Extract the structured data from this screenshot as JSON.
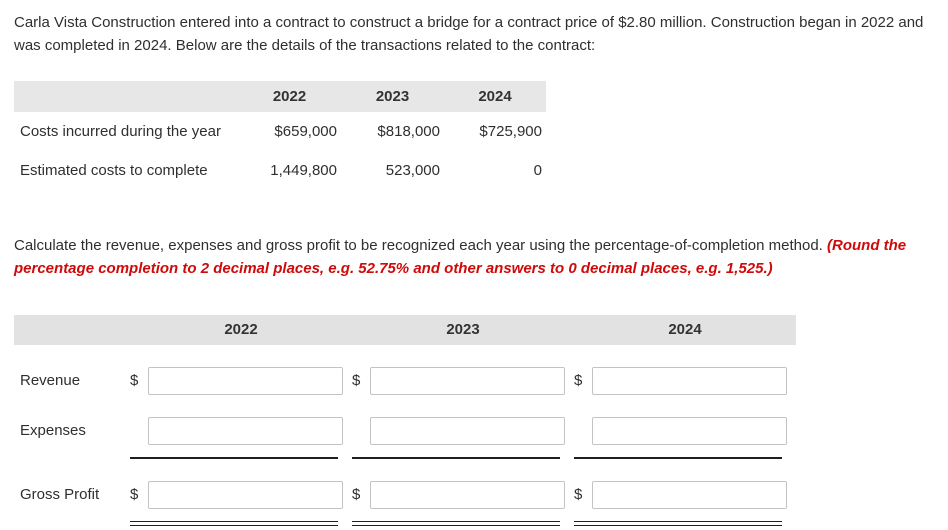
{
  "intro": {
    "text": "Carla Vista Construction entered into a contract to construct a bridge for a contract price of $2.80 million. Construction began in 2022 and was completed in 2024. Below are the details of the transactions related to the contract:"
  },
  "cost_table": {
    "years": [
      "2022",
      "2023",
      "2024"
    ],
    "rows": [
      {
        "label": "Costs incurred during the year",
        "values": [
          "$659,000",
          "$818,000",
          "$725,900"
        ]
      },
      {
        "label": "Estimated costs to complete",
        "values": [
          "1,449,800",
          "523,000",
          "0"
        ]
      }
    ]
  },
  "instruction": {
    "normal": "Calculate the revenue, expenses and gross profit to be recognized each year using the percentage-of-completion method. ",
    "emphasis": "(Round the percentage completion to 2 decimal places, e.g. 52.75% and other answers to 0 decimal places, e.g. 1,525.)"
  },
  "answer_table": {
    "years": [
      "2022",
      "2023",
      "2024"
    ],
    "rows": [
      {
        "label": "Revenue",
        "currency": "$"
      },
      {
        "label": "Expenses",
        "currency": ""
      },
      {
        "label": "Gross Profit",
        "currency": "$"
      }
    ],
    "inputs": {
      "value": "",
      "placeholder": ""
    }
  }
}
